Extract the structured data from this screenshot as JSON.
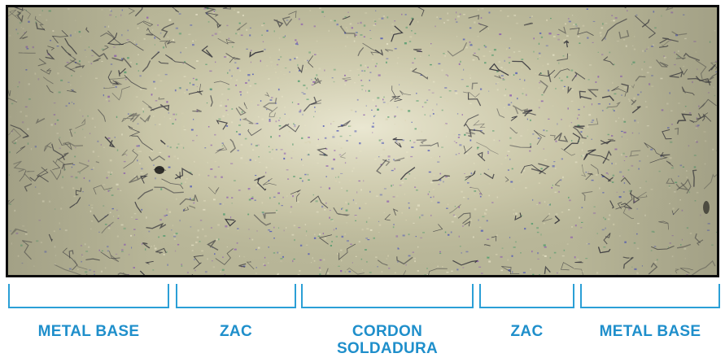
{
  "micrograph": {
    "icon": "metallographic-weld-cross-section-image",
    "colors": {
      "base": "#b7b597",
      "light": "#e6e2c6",
      "grain_dark": "#1a1a28",
      "speckle_blue": "#4f57b8",
      "speckle_purple": "#8a5ab0",
      "speckle_green": "#4f9a6c"
    }
  },
  "zones": [
    {
      "label_lines": [
        "METAL BASE"
      ]
    },
    {
      "label_lines": [
        "ZAC"
      ]
    },
    {
      "label_lines": [
        "CORDON",
        "SOLDADURA"
      ]
    },
    {
      "label_lines": [
        "ZAC"
      ]
    },
    {
      "label_lines": [
        "METAL BASE"
      ]
    }
  ],
  "style": {
    "accent": "#2b9fd6",
    "label_color": "#1f8fcb"
  }
}
